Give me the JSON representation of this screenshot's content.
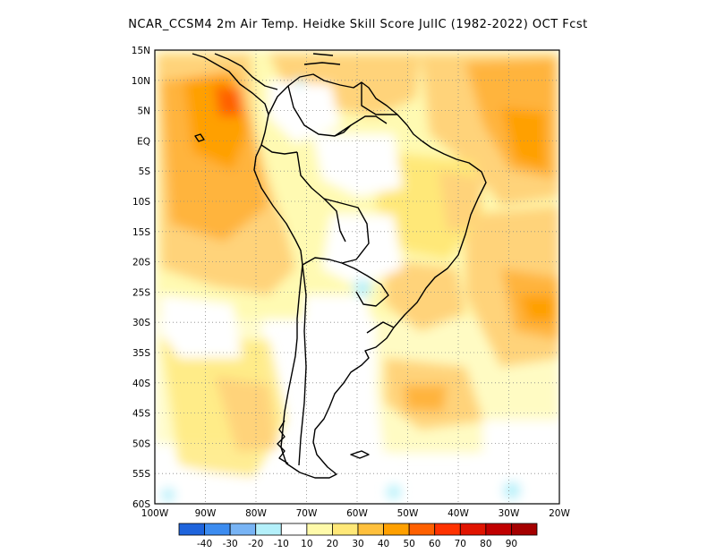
{
  "title": "NCAR_CCSM4  2m Air Temp. Heidke Skill Score JulIC (1982-2022) OCT Fcst",
  "map": {
    "lat_ticks": [
      "15N",
      "10N",
      "5N",
      "EQ",
      "5S",
      "10S",
      "15S",
      "20S",
      "25S",
      "30S",
      "35S",
      "40S",
      "45S",
      "50S",
      "55S",
      "60S"
    ],
    "lon_ticks": [
      "100W",
      "90W",
      "80W",
      "70W",
      "60W",
      "50W",
      "40W",
      "30W",
      "20W"
    ],
    "field": "Heidke skill score (2m air temperature)",
    "extent": {
      "lon_min": -100,
      "lon_max": -20,
      "lat_min": -60,
      "lat_max": 15
    }
  },
  "colorbar": {
    "labels": [
      "-40",
      "-30",
      "-20",
      "-10",
      "10",
      "20",
      "30",
      "40",
      "50",
      "60",
      "70",
      "80",
      "90"
    ],
    "colors": [
      "#1e64dc",
      "#3c8cf0",
      "#78b4f5",
      "#b4f0fa",
      "#ffffff",
      "#fffaaa",
      "#ffe878",
      "#ffc03c",
      "#ffa000",
      "#ff6000",
      "#ff3200",
      "#e11400",
      "#c00000",
      "#a50000"
    ]
  },
  "colors": {
    "land_outline": "#000000",
    "grid": "#888888"
  }
}
